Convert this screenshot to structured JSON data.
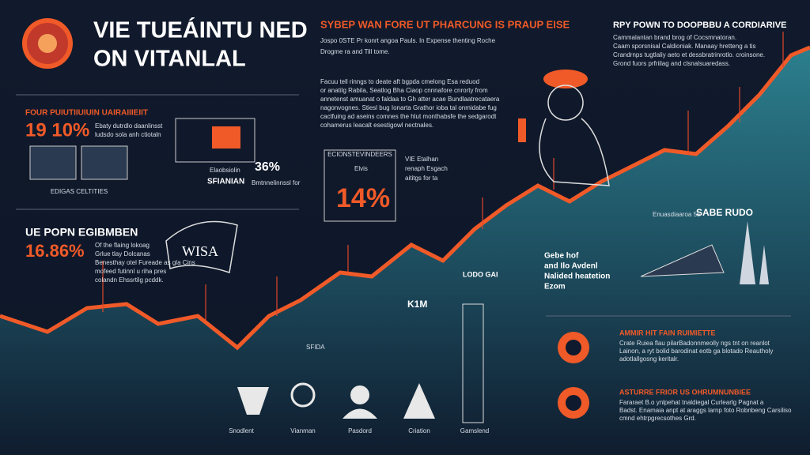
{
  "header": {
    "title_line1": "VIE TUEÁINTU NED",
    "title_line2": "ON VITANLAL"
  },
  "center_top": {
    "heading": "SYBEP WAN FORE UT PHARCUNG IS PRAUP EISE",
    "lines": [
      "Jospo 0STE Pr konrt angoa Pauls. In Expense thenting Roche",
      "Drogme ra and Till tome."
    ]
  },
  "right_top": {
    "heading": "RPY POWN TO DOOPBBU A CORDIARIVE",
    "lines": [
      "Cammalantan brand brog of Cocsmnatoran.",
      "Caam sporsnisal Caldioniak. Manaay hretteng a tis",
      "Crandrnps tugtlaliy aeto et dessbratrinrotlo. croinsone.",
      "Grond fuors prfriilag and clsnalsuaredass."
    ]
  },
  "center_note": {
    "lines": [
      "Facuu tell rinngs to deate aft bgpda cmelong Esa reduod",
      "or anatilg Rabila, Seatlog Bha Ciaop cnnnafore cnrorty from",
      "annetenst amuanat o faldaa to Gh atter acae Bundlaatrecataera",
      "nagonvognes. Stiesl bug Ionarta Grathor ioba tal onmidabe fug",
      "cactfuing ad aseins comnes the hlut monthabsfe the sedgarodt",
      "cohamerus leacalt esestigowl nectnales."
    ]
  },
  "left_block1": {
    "heading": "FOUR PUIUTIIUIUIN UAIRAIIIEIIT",
    "value": "19 10%",
    "lines": [
      "Ebaty dutrdlo daanlinsst",
      "ludsdo sola anh ctiotaln"
    ],
    "caption": "EDIGAS CELTITIES"
  },
  "mid_block": {
    "value": "36%",
    "label1": "Elaobsiolin",
    "label2": "SFIANIAN",
    "note": "Bmtnnelinnssl for"
  },
  "left_block2": {
    "heading": "UE POPN EGIBMBEN",
    "value": "16.86%",
    "lines": [
      "Of the flaing lokoag",
      "Grlue tlay Dolcanas",
      "Benesthay otel Fureade as gla Cins",
      "mofeed futinnl u riha pres",
      "colandn Ehssrtilg pcddk."
    ],
    "badge": "WISA"
  },
  "center_box": {
    "caption": "ECIONSTEVINDEERS",
    "tag": "Elvis",
    "value": "14%",
    "lines": [
      "VIE Etalhan",
      "renaph Esgach",
      "aititgs for ta"
    ]
  },
  "right_mid": {
    "label": "SABE RUDO",
    "sub": "Enuasdiaaroa  55",
    "note_lines": [
      "Gebe hof",
      "and Ilo Avdenl",
      "Nalided heatetion",
      "Ezom"
    ]
  },
  "chart_labels": {
    "k1m": "K1M",
    "tower": "LODO GAI",
    "small": "SFIDA"
  },
  "bottom_labels": [
    "Snodlent",
    "Vianman",
    "Pasdord",
    "Criation",
    "Gamslend"
  ],
  "right_bottom": [
    {
      "heading": "AMMIR HIT FAIN RUIMIETTE",
      "lines": [
        "Crate Ruiea flau pilarBadonnmeolly ngs tnt on reanlot",
        "Lainon, a ryt bolid barodinat eotb ga blotado Reautholy",
        "adotlallgosng keritalr."
      ]
    },
    {
      "heading": "ASTURRE FRIOR US OHRUMNUNBIEE",
      "lines": [
        "Fararaet B.o ynlpehat tnaldiegal Curlearlg Pagnat a",
        "Badst. Enamaia anpt at araggs larnp foto Robnbeng Carsiliso",
        "cmnd ehtrpgrecsothes Grd."
      ]
    }
  ]
}
